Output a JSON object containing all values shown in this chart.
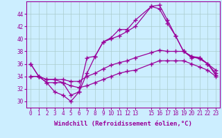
{
  "xlabel": "Windchill (Refroidissement éolien,°C)",
  "ylabel": "",
  "background_color": "#cceeff",
  "line_color": "#990099",
  "grid_color": "#aacccc",
  "x_ticks": [
    0,
    1,
    2,
    3,
    4,
    5,
    6,
    7,
    8,
    9,
    10,
    11,
    12,
    13,
    15,
    16,
    17,
    18,
    19,
    20,
    21,
    22,
    23
  ],
  "xlim": [
    -0.5,
    23.5
  ],
  "ylim": [
    29.0,
    46.0
  ],
  "y_ticks": [
    30,
    32,
    34,
    36,
    38,
    40,
    42,
    44
  ],
  "series": [
    {
      "x": [
        0,
        1,
        2,
        3,
        4,
        5,
        6,
        7,
        8,
        9,
        10,
        11,
        12,
        13,
        15,
        16,
        17,
        18,
        19,
        20,
        21,
        22,
        23
      ],
      "y": [
        36,
        34,
        33,
        33,
        33,
        31,
        31.5,
        34.5,
        37.2,
        39.5,
        40.2,
        41.5,
        41.5,
        43,
        45.2,
        45.4,
        43,
        40.5,
        38,
        37.2,
        37,
        36,
        35
      ]
    },
    {
      "x": [
        0,
        1,
        2,
        3,
        4,
        5,
        6,
        7,
        8,
        9,
        10,
        11,
        12,
        13,
        15,
        16,
        17,
        18,
        19,
        20,
        21,
        22,
        23
      ],
      "y": [
        34,
        34,
        33.5,
        33.5,
        33.5,
        33.2,
        33.2,
        34,
        34.5,
        35.2,
        35.8,
        36.2,
        36.5,
        37,
        37.8,
        38.2,
        38,
        38,
        38,
        37.2,
        36.8,
        36,
        34.2
      ]
    },
    {
      "x": [
        0,
        1,
        2,
        3,
        4,
        5,
        6,
        7,
        8,
        9,
        10,
        11,
        12,
        13,
        15,
        16,
        17,
        18,
        19,
        20,
        21,
        22,
        23
      ],
      "y": [
        34,
        34,
        33.5,
        33.5,
        33,
        32.5,
        32.2,
        32.5,
        33,
        33.5,
        34,
        34.5,
        34.8,
        35,
        36,
        36.5,
        36.5,
        36.5,
        36.5,
        36,
        35.5,
        35,
        34
      ]
    },
    {
      "x": [
        0,
        1,
        2,
        3,
        4,
        5,
        6,
        7,
        8,
        9,
        10,
        11,
        12,
        13,
        15,
        16,
        17,
        18,
        19,
        20,
        21,
        22,
        23
      ],
      "y": [
        36,
        34,
        33,
        31.5,
        31,
        30,
        31.5,
        37,
        37.2,
        39.5,
        40,
        40.5,
        41.2,
        42,
        45.2,
        44.8,
        42.5,
        40.5,
        38,
        37,
        37,
        36,
        34.5
      ]
    }
  ],
  "marker": "+",
  "markersize": 4,
  "linewidth": 0.9,
  "tick_fontsize": 5.5,
  "xlabel_fontsize": 6.5
}
